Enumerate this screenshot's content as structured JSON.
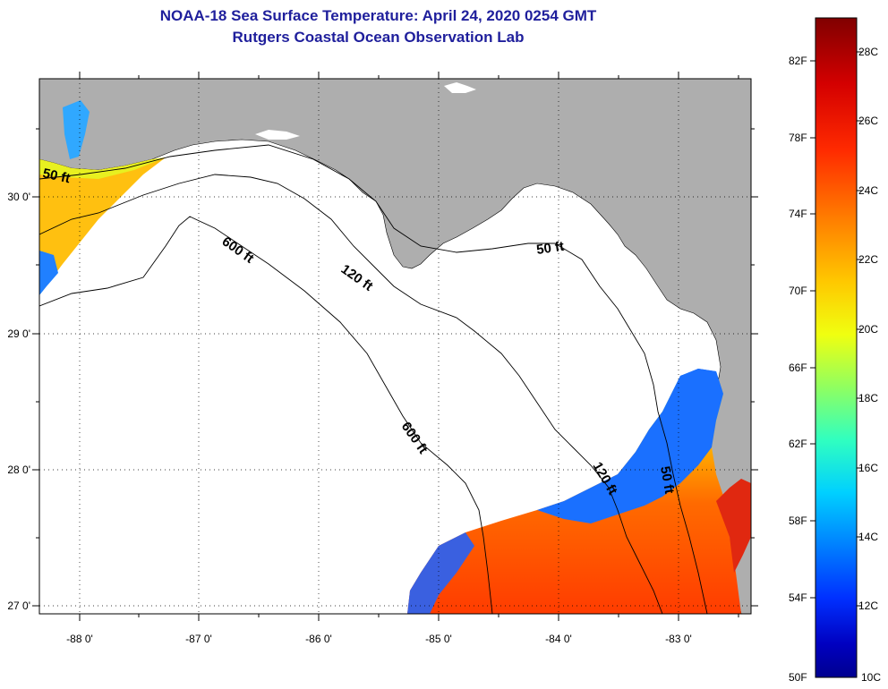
{
  "title_line1": "NOAA-18 Sea Surface Temperature:  April 24, 2020 0254 GMT",
  "title_line2": "Rutgers Coastal Ocean Observation Lab",
  "lon_labels": [
    "-88 0'",
    "-87 0'",
    "-86 0'",
    "-85 0'",
    "-84 0'",
    "-83 0'"
  ],
  "lat_labels": [
    "30 0'",
    "29 0'",
    "28 0'",
    "27 0'"
  ],
  "colorbar": {
    "fahrenheit": [
      "82F",
      "78F",
      "74F",
      "70F",
      "66F",
      "62F",
      "58F",
      "54F",
      "50F"
    ],
    "celsius": [
      "28C",
      "26C",
      "24C",
      "22C",
      "20C",
      "18C",
      "16C",
      "14C",
      "12C",
      "10C"
    ],
    "colors": [
      "#800000",
      "#d40000",
      "#ff2a00",
      "#ff7a00",
      "#ffc800",
      "#f0ff10",
      "#90ff60",
      "#30ffc0",
      "#00d0ff",
      "#0080ff",
      "#0030ff",
      "#0000c0",
      "#00008f"
    ]
  },
  "contour_labels": {
    "c50_west": "50 ft",
    "c600_upper": "600 ft",
    "c120_upper": "120 ft",
    "c50_east": "50 ft",
    "c600_lower": "600 ft",
    "c120_lower": "120 ft",
    "c50_lower": "50 ft"
  },
  "colors": {
    "land": "#aeaeae",
    "ocean_nodata": "#ffffff",
    "title": "#1f1f9c"
  }
}
